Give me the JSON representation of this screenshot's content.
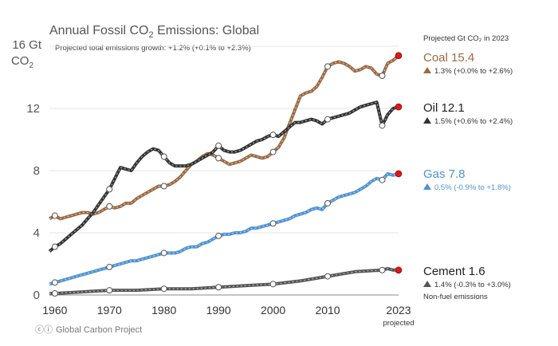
{
  "chart_data": {
    "type": "line",
    "title": "Annual Fossil CO",
    "title_sub": "2",
    "title_end": " Emissions: Global",
    "subtitle": "Projected total emissions growth: +1.2% (+0.1% to +2.3%)",
    "yunit_line1": "16 Gt",
    "yunit_line2": "CO",
    "yunit_sub": "2",
    "ylim": [
      0,
      16
    ],
    "yticks": [
      0,
      4,
      8,
      12
    ],
    "xlim": [
      1959,
      2023
    ],
    "xticks": [
      "1960",
      "1970",
      "1980",
      "1990",
      "2000",
      "2010",
      "2023"
    ],
    "xtick_values": [
      1960,
      1970,
      1980,
      1990,
      2000,
      2010,
      2023
    ],
    "x_note": "projected",
    "legend_header": "Projected Gt CO₂ in 2023",
    "grid": "horizontal",
    "colors": {
      "Coal": "#9a6a45",
      "Oil": "#333333",
      "Gas": "#4f92cf",
      "Cement": "#555555",
      "projection_dot": "#e0181b"
    },
    "series": [
      {
        "name": "Coal",
        "label": "Coal 15.4",
        "growth": "1.3% (+0.0% to +2.6%)",
        "x": [
          1959,
          1960,
          1961,
          1962,
          1963,
          1964,
          1965,
          1966,
          1967,
          1968,
          1969,
          1970,
          1971,
          1972,
          1973,
          1974,
          1975,
          1976,
          1977,
          1978,
          1979,
          1980,
          1981,
          1982,
          1983,
          1984,
          1985,
          1986,
          1987,
          1988,
          1989,
          1990,
          1991,
          1992,
          1993,
          1994,
          1995,
          1996,
          1997,
          1998,
          1999,
          2000,
          2001,
          2002,
          2003,
          2004,
          2005,
          2006,
          2007,
          2008,
          2009,
          2010,
          2011,
          2012,
          2013,
          2014,
          2015,
          2016,
          2017,
          2018,
          2019,
          2020,
          2021,
          2022,
          2023
        ],
        "values": [
          4.9,
          5.1,
          4.9,
          5.0,
          5.1,
          5.2,
          5.3,
          5.3,
          5.2,
          5.3,
          5.5,
          5.7,
          5.6,
          5.7,
          5.9,
          5.9,
          6.2,
          6.4,
          6.6,
          6.8,
          7.0,
          7.0,
          7.1,
          7.3,
          7.6,
          8.0,
          8.4,
          8.6,
          8.9,
          9.1,
          9.0,
          8.8,
          8.6,
          8.4,
          8.5,
          8.6,
          8.8,
          9.0,
          8.9,
          8.8,
          8.9,
          9.2,
          9.5,
          10.1,
          11.0,
          11.9,
          12.8,
          13.0,
          13.1,
          13.4,
          14.0,
          14.7,
          14.9,
          15.0,
          14.9,
          14.7,
          14.4,
          14.5,
          14.7,
          14.6,
          14.2,
          14.1,
          14.9,
          15.1,
          15.4
        ],
        "markers": [
          1960,
          1970,
          1980,
          1990,
          2000,
          2010,
          2020
        ]
      },
      {
        "name": "Oil",
        "label": "Oil 12.1",
        "growth": "1.5% (+0.6% to +2.4%)",
        "x": [
          1959,
          1960,
          1961,
          1962,
          1963,
          1964,
          1965,
          1966,
          1967,
          1968,
          1969,
          1970,
          1971,
          1972,
          1973,
          1974,
          1975,
          1976,
          1977,
          1978,
          1979,
          1980,
          1981,
          1982,
          1983,
          1984,
          1985,
          1986,
          1987,
          1988,
          1989,
          1990,
          1991,
          1992,
          1993,
          1994,
          1995,
          1996,
          1997,
          1998,
          1999,
          2000,
          2001,
          2002,
          2003,
          2004,
          2005,
          2006,
          2007,
          2008,
          2009,
          2010,
          2011,
          2012,
          2013,
          2014,
          2015,
          2016,
          2017,
          2018,
          2019,
          2020,
          2021,
          2022,
          2023
        ],
        "values": [
          2.8,
          3.1,
          3.3,
          3.6,
          3.9,
          4.2,
          4.5,
          4.9,
          5.3,
          5.8,
          6.3,
          6.8,
          7.5,
          8.2,
          8.1,
          8.0,
          8.5,
          8.9,
          9.2,
          9.4,
          9.3,
          8.9,
          8.5,
          8.3,
          8.3,
          8.3,
          8.4,
          8.6,
          8.8,
          9.0,
          9.2,
          9.6,
          9.3,
          9.2,
          9.2,
          9.3,
          9.5,
          9.7,
          9.9,
          10.0,
          10.2,
          10.3,
          10.2,
          10.5,
          10.8,
          11.1,
          11.1,
          11.2,
          11.3,
          11.2,
          11.0,
          11.3,
          11.4,
          11.5,
          11.6,
          11.7,
          11.9,
          12.1,
          12.2,
          12.3,
          12.4,
          10.9,
          11.6,
          12.0,
          12.1
        ],
        "markers": [
          1960,
          1970,
          1980,
          1990,
          2000,
          2010,
          2020
        ]
      },
      {
        "name": "Gas",
        "label": "Gas 7.8",
        "growth": "0.5% (-0.9% to +1.8%)",
        "x": [
          1959,
          1960,
          1961,
          1962,
          1963,
          1964,
          1965,
          1966,
          1967,
          1968,
          1969,
          1970,
          1971,
          1972,
          1973,
          1974,
          1975,
          1976,
          1977,
          1978,
          1979,
          1980,
          1981,
          1982,
          1983,
          1984,
          1985,
          1986,
          1987,
          1988,
          1989,
          1990,
          1991,
          1992,
          1993,
          1994,
          1995,
          1996,
          1997,
          1998,
          1999,
          2000,
          2001,
          2002,
          2003,
          2004,
          2005,
          2006,
          2007,
          2008,
          2009,
          2010,
          2011,
          2012,
          2013,
          2014,
          2015,
          2016,
          2017,
          2018,
          2019,
          2020,
          2021,
          2022,
          2023
        ],
        "values": [
          0.7,
          0.8,
          0.9,
          1.0,
          1.1,
          1.2,
          1.3,
          1.4,
          1.5,
          1.6,
          1.7,
          1.8,
          1.9,
          2.0,
          2.1,
          2.2,
          2.2,
          2.3,
          2.4,
          2.5,
          2.6,
          2.7,
          2.7,
          2.7,
          2.8,
          3.0,
          3.1,
          3.1,
          3.3,
          3.4,
          3.6,
          3.8,
          3.9,
          3.9,
          4.0,
          4.0,
          4.1,
          4.3,
          4.3,
          4.4,
          4.5,
          4.6,
          4.7,
          4.8,
          4.9,
          5.1,
          5.2,
          5.3,
          5.5,
          5.6,
          5.5,
          5.9,
          6.1,
          6.3,
          6.4,
          6.5,
          6.6,
          6.8,
          7.0,
          7.3,
          7.5,
          7.4,
          7.8,
          7.7,
          7.8
        ],
        "markers": [
          1960,
          1970,
          1980,
          1990,
          2000,
          2010,
          2020
        ]
      },
      {
        "name": "Cement",
        "label": "Cement 1.6",
        "growth": "1.4% (-0.3% to +3.0%)",
        "note": "Non-fuel emissions",
        "x": [
          1959,
          1960,
          1965,
          1970,
          1975,
          1980,
          1985,
          1990,
          1995,
          2000,
          2005,
          2010,
          2015,
          2020,
          2021,
          2022,
          2023
        ],
        "values": [
          0.1,
          0.1,
          0.2,
          0.3,
          0.3,
          0.4,
          0.4,
          0.5,
          0.6,
          0.7,
          0.9,
          1.2,
          1.5,
          1.6,
          1.7,
          1.6,
          1.6
        ],
        "markers": [
          1960,
          1970,
          1980,
          1990,
          2000,
          2010,
          2020
        ]
      }
    ],
    "credit": "Global Carbon Project"
  }
}
